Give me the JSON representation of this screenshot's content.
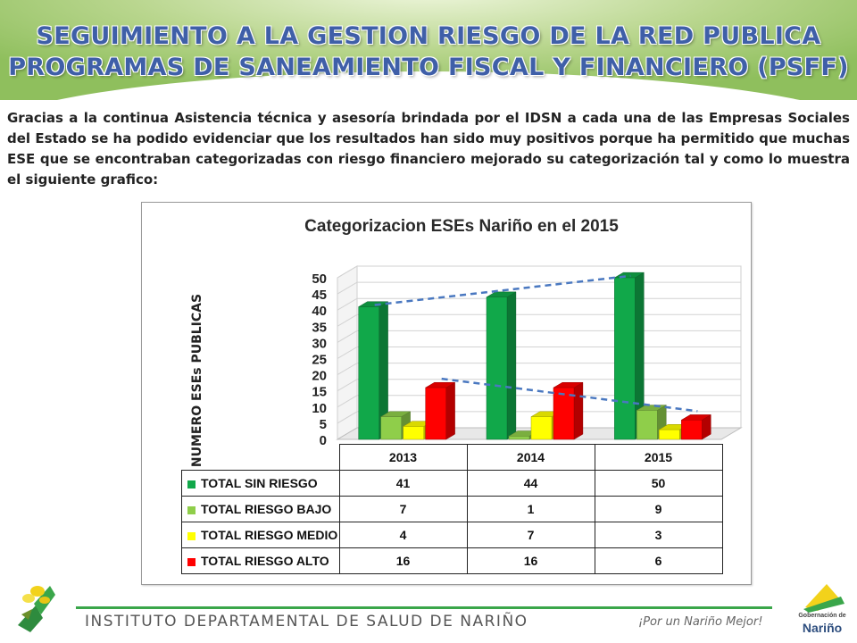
{
  "header": {
    "title_line1": "SEGUIMIENTO A LA GESTION RIESGO DE LA RED PUBLICA",
    "title_line2": "PROGRAMAS DE SANEAMIENTO FISCAL Y FINANCIERO (PSFF)"
  },
  "intro_text": "Gracias a la continua Asistencia técnica y asesoría brindada por el IDSN a cada una de las Empresas Sociales del Estado se ha podido evidenciar que los resultados han sido muy positivos porque ha permitido que muchas ESE que se encontraban categorizadas con riesgo financiero mejorado su categorización tal y como lo muestra el siguiente grafico:",
  "chart_data": {
    "type": "bar",
    "title": "Categorizacion ESEs Nariño en el 2015",
    "ylabel": "NUMERO ESEs PUBLICAS",
    "xlabel": "",
    "categories": [
      "2013",
      "2014",
      "2015"
    ],
    "ylim": [
      0,
      50
    ],
    "yticks": [
      "0",
      "5",
      "10",
      "15",
      "20",
      "25",
      "30",
      "35",
      "40",
      "45",
      "50"
    ],
    "grid": true,
    "legend": "data-table-below",
    "three_d": true,
    "trendlines": [
      "TOTAL SIN RIESGO",
      "TOTAL RIESGO ALTO"
    ],
    "series": [
      {
        "name": "TOTAL SIN RIESGO",
        "values": [
          41,
          44,
          50
        ],
        "color": "#11a84a"
      },
      {
        "name": "TOTAL RIESGO BAJO",
        "values": [
          7,
          1,
          9
        ],
        "color": "#8fce4a"
      },
      {
        "name": "TOTAL RIESGO MEDIO",
        "values": [
          4,
          7,
          3
        ],
        "color": "#ffff00"
      },
      {
        "name": "TOTAL RIESGO ALTO",
        "values": [
          16,
          16,
          6
        ],
        "color": "#ff0000"
      }
    ],
    "table_values": [
      [
        "41",
        "44",
        "50"
      ],
      [
        "7",
        "1",
        "9"
      ],
      [
        "4",
        "7",
        "3"
      ],
      [
        "16",
        "16",
        "6"
      ]
    ]
  },
  "footer": {
    "institution": "INSTITUTO DEPARTAMENTAL DE SALUD DE NARIÑO",
    "slogan": "¡Por un Nariño Mejor!",
    "gob_line1": "Gobernación de",
    "gob_line2": "Nariño"
  },
  "colors": {
    "title": "#3f5fa8",
    "accent_green": "#3aa64a",
    "trend": "#4a78c0"
  }
}
